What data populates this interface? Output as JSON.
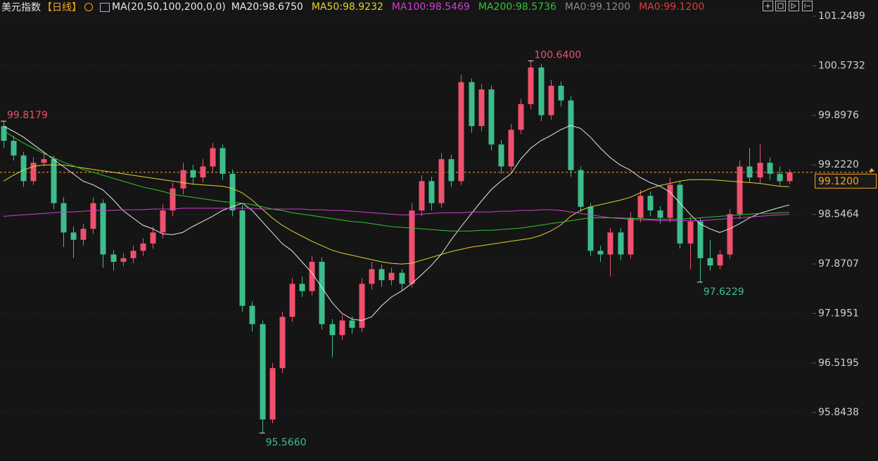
{
  "header": {
    "title": "美元指数",
    "period": "【日线】",
    "indicator": "MA(20,50,100,200,0,0)"
  },
  "chart_data": {
    "type": "candlestick",
    "open": [
      99.75,
      99.55,
      99.35,
      99.0,
      99.25,
      99.3,
      98.7,
      98.3,
      98.2,
      98.35,
      98.7,
      98.0,
      97.9,
      97.95,
      98.05,
      98.15,
      98.3,
      98.6,
      98.9,
      99.15,
      99.05,
      99.2,
      99.45,
      99.1,
      98.6,
      97.3,
      97.05,
      95.75,
      96.45,
      97.15,
      97.6,
      97.5,
      97.9,
      97.05,
      96.9,
      97.1,
      97.0,
      97.6,
      97.8,
      97.65,
      97.75,
      97.6,
      98.6,
      99.0,
      98.7,
      99.3,
      99.0,
      100.35,
      99.75,
      100.25,
      99.5,
      99.2,
      99.7,
      100.05,
      100.55,
      99.9,
      100.3,
      100.1,
      99.15,
      98.65,
      98.05,
      98.0,
      98.3,
      98.0,
      98.5,
      98.8,
      98.6,
      98.5,
      98.95,
      98.15,
      98.45,
      97.95,
      97.85,
      98.0,
      98.55,
      99.2,
      99.05,
      99.25,
      99.1,
      99.0
    ],
    "high": [
      99.8179,
      99.62,
      99.4,
      99.33,
      99.38,
      99.35,
      98.78,
      98.38,
      98.42,
      98.78,
      98.75,
      98.06,
      98.02,
      98.12,
      98.22,
      98.38,
      98.68,
      98.98,
      99.25,
      99.22,
      99.3,
      99.52,
      99.5,
      99.16,
      98.68,
      97.36,
      97.1,
      96.52,
      97.22,
      97.68,
      97.7,
      97.98,
      97.96,
      97.12,
      97.18,
      97.16,
      97.68,
      97.9,
      97.86,
      97.82,
      97.8,
      98.7,
      99.08,
      99.06,
      99.38,
      99.36,
      100.45,
      100.4,
      100.32,
      100.3,
      99.56,
      99.78,
      100.12,
      100.64,
      100.6,
      100.38,
      100.36,
      100.16,
      99.2,
      98.7,
      98.12,
      98.36,
      98.36,
      98.58,
      98.88,
      98.86,
      98.66,
      99.05,
      99.0,
      98.52,
      98.5,
      98.2,
      98.06,
      98.62,
      99.28,
      99.45,
      99.5,
      99.32,
      99.2,
      99.16
    ],
    "low": [
      99.45,
      99.28,
      98.92,
      98.95,
      99.2,
      98.62,
      98.1,
      97.95,
      98.12,
      98.28,
      97.82,
      97.78,
      97.84,
      97.88,
      97.98,
      98.08,
      98.22,
      98.52,
      98.82,
      98.95,
      98.98,
      99.12,
      99.02,
      98.52,
      97.22,
      96.95,
      95.566,
      95.7,
      96.38,
      97.08,
      97.42,
      97.44,
      96.98,
      96.6,
      96.84,
      96.92,
      96.94,
      97.52,
      97.56,
      97.58,
      97.5,
      97.55,
      98.52,
      98.6,
      98.64,
      98.92,
      98.95,
      99.66,
      99.68,
      99.42,
      99.1,
      99.14,
      99.64,
      99.98,
      99.82,
      99.84,
      100.02,
      99.06,
      98.58,
      97.98,
      97.9,
      97.7,
      97.92,
      97.94,
      98.44,
      98.52,
      98.42,
      98.44,
      98.08,
      97.8,
      97.6229,
      97.78,
      97.8,
      97.94,
      98.48,
      98.98,
      98.98,
      99.02,
      98.94,
      98.96
    ],
    "close": [
      99.55,
      99.35,
      99.0,
      99.25,
      99.3,
      98.7,
      98.3,
      98.2,
      98.35,
      98.7,
      98.0,
      97.9,
      97.95,
      98.05,
      98.15,
      98.3,
      98.6,
      98.9,
      99.15,
      99.05,
      99.2,
      99.45,
      99.1,
      98.6,
      97.3,
      97.05,
      95.75,
      96.45,
      97.15,
      97.6,
      97.5,
      97.9,
      97.05,
      96.9,
      97.1,
      97.0,
      97.6,
      97.8,
      97.65,
      97.75,
      97.6,
      98.6,
      99.0,
      98.7,
      99.3,
      99.0,
      100.35,
      99.75,
      100.25,
      99.5,
      99.2,
      99.7,
      100.05,
      100.55,
      99.9,
      100.3,
      100.1,
      99.15,
      98.65,
      98.05,
      98.0,
      98.3,
      98.0,
      98.5,
      98.8,
      98.6,
      98.5,
      98.95,
      98.15,
      98.45,
      97.95,
      97.85,
      98.0,
      98.55,
      99.2,
      99.05,
      99.25,
      99.1,
      99.0,
      99.12
    ],
    "up_color": "#f0506e",
    "down_color": "#3dbd8c",
    "series": [
      {
        "name": "MA20:98.6750",
        "color": "#e8e8e8",
        "values": [
          99.75,
          99.68,
          99.6,
          99.5,
          99.4,
          99.3,
          99.2,
          99.1,
          99.0,
          98.95,
          98.88,
          98.75,
          98.6,
          98.5,
          98.4,
          98.35,
          98.28,
          98.27,
          98.3,
          98.38,
          98.45,
          98.52,
          98.6,
          98.65,
          98.7,
          98.6,
          98.45,
          98.3,
          98.15,
          98.05,
          97.9,
          97.75,
          97.55,
          97.35,
          97.2,
          97.12,
          97.1,
          97.15,
          97.3,
          97.42,
          97.5,
          97.6,
          97.72,
          97.85,
          98.0,
          98.2,
          98.38,
          98.55,
          98.72,
          98.88,
          99.0,
          99.1,
          99.3,
          99.45,
          99.55,
          99.62,
          99.7,
          99.76,
          99.72,
          99.6,
          99.45,
          99.32,
          99.22,
          99.15,
          99.05,
          98.98,
          98.93,
          98.85,
          98.7,
          98.55,
          98.42,
          98.35,
          98.3,
          98.35,
          98.42,
          98.5,
          98.56,
          98.6,
          98.64,
          98.675
        ]
      },
      {
        "name": "MA50:98.9232",
        "color": "#e2d12e",
        "values": [
          99.0,
          99.08,
          99.15,
          99.2,
          99.22,
          99.22,
          99.22,
          99.2,
          99.18,
          99.16,
          99.14,
          99.12,
          99.1,
          99.08,
          99.06,
          99.04,
          99.02,
          99.0,
          98.98,
          98.96,
          98.95,
          98.94,
          98.93,
          98.9,
          98.84,
          98.74,
          98.62,
          98.5,
          98.4,
          98.32,
          98.25,
          98.18,
          98.12,
          98.06,
          98.02,
          97.99,
          97.96,
          97.93,
          97.9,
          97.88,
          97.87,
          97.88,
          97.92,
          97.96,
          98.0,
          98.04,
          98.07,
          98.1,
          98.12,
          98.14,
          98.16,
          98.18,
          98.2,
          98.22,
          98.26,
          98.32,
          98.4,
          98.52,
          98.6,
          98.65,
          98.68,
          98.71,
          98.74,
          98.78,
          98.84,
          98.9,
          98.94,
          98.97,
          99.0,
          99.02,
          99.02,
          99.02,
          99.01,
          99.0,
          98.99,
          98.98,
          98.97,
          98.95,
          98.93,
          98.9232
        ]
      },
      {
        "name": "MA100:98.5469",
        "color": "#d43cd4",
        "values": [
          98.52,
          98.53,
          98.54,
          98.55,
          98.56,
          98.57,
          98.58,
          98.58,
          98.59,
          98.6,
          98.6,
          98.6,
          98.61,
          98.61,
          98.61,
          98.62,
          98.62,
          98.62,
          98.63,
          98.63,
          98.63,
          98.63,
          98.63,
          98.63,
          98.63,
          98.63,
          98.62,
          98.62,
          98.62,
          98.62,
          98.62,
          98.61,
          98.61,
          98.6,
          98.6,
          98.59,
          98.58,
          98.57,
          98.56,
          98.55,
          98.54,
          98.54,
          98.55,
          98.56,
          98.57,
          98.57,
          98.57,
          98.58,
          98.58,
          98.58,
          98.59,
          98.59,
          98.6,
          98.6,
          98.61,
          98.61,
          98.6,
          98.58,
          98.56,
          98.54,
          98.52,
          98.5,
          98.49,
          98.48,
          98.47,
          98.47,
          98.46,
          98.46,
          98.46,
          98.46,
          98.46,
          98.47,
          98.48,
          98.49,
          98.5,
          98.51,
          98.52,
          98.53,
          98.54,
          98.5469
        ]
      },
      {
        "name": "MA200:98.5736",
        "color": "#2fc42f",
        "values": [
          99.69,
          99.6,
          99.52,
          99.45,
          99.38,
          99.32,
          99.26,
          99.21,
          99.16,
          99.12,
          99.08,
          99.04,
          99.0,
          98.96,
          98.92,
          98.89,
          98.86,
          98.82,
          98.8,
          98.78,
          98.76,
          98.74,
          98.72,
          98.71,
          98.7,
          98.68,
          98.65,
          98.62,
          98.6,
          98.57,
          98.55,
          98.53,
          98.51,
          98.49,
          98.47,
          98.45,
          98.44,
          98.42,
          98.4,
          98.38,
          98.37,
          98.36,
          98.35,
          98.34,
          98.33,
          98.32,
          98.32,
          98.32,
          98.33,
          98.33,
          98.34,
          98.35,
          98.36,
          98.38,
          98.4,
          98.42,
          98.44,
          98.46,
          98.48,
          98.5,
          98.5,
          98.5,
          98.5,
          98.49,
          98.49,
          98.48,
          98.48,
          98.48,
          98.48,
          98.49,
          98.5,
          98.51,
          98.52,
          98.53,
          98.54,
          98.55,
          98.56,
          98.56,
          98.57,
          98.5736
        ]
      }
    ],
    "legend_extra": [
      {
        "name": "MA0:99.1200",
        "color": "#8a8a8a"
      },
      {
        "name": "MA0:99.1200",
        "color": "#e03c3c"
      }
    ],
    "ylim": [
      95.184,
      101.4697
    ],
    "yticks": [
      101.2489,
      100.5732,
      99.8976,
      {
        "value": 99.222,
        "label": "99.2220"
      },
      98.5464,
      97.8707,
      97.1951,
      96.5195,
      95.8438
    ],
    "grid": true,
    "last_price": {
      "value": 99.12,
      "label": "99.1200",
      "color": "#f5a623"
    },
    "annotations": [
      {
        "index": 0,
        "value": 99.8179,
        "label": "99.8179",
        "position": "above"
      },
      {
        "index": 53,
        "value": 100.64,
        "label": "100.6400",
        "position": "above"
      },
      {
        "index": 26,
        "value": 95.566,
        "label": "95.5660",
        "position": "below"
      },
      {
        "index": 70,
        "value": 97.6229,
        "label": "97.6229",
        "position": "below"
      }
    ]
  }
}
